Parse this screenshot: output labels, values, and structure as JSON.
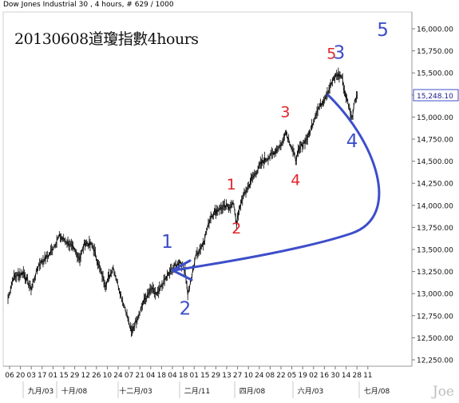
{
  "header": {
    "title": "Dow Jones Industrial 30 , 4 hours, # 629 / 1000"
  },
  "overlay_title": "20130608道瓊指數4hours",
  "watermark": "Joe",
  "colors": {
    "background": "#ffffff",
    "price_line": "#000000",
    "red_label": "#e0262b",
    "blue_label": "#3d4ec9",
    "arrow": "#3d4ec9",
    "last_price_box": "#3d4ec9"
  },
  "chart_data": {
    "type": "line",
    "title": "",
    "xlabel": "",
    "ylabel": "",
    "ylim": [
      12250,
      16000
    ],
    "y_ticks": [
      "12,250.00",
      "12,500.00",
      "12,750.00",
      "13,000.00",
      "13,250.00",
      "13,500.00",
      "13,750.00",
      "14,000.00",
      "14,250.00",
      "14,500.00",
      "14,750.00",
      "15,000.00",
      "15,250.00",
      "15,500.00",
      "15,750.00",
      "16,000.00"
    ],
    "x_ticks": [
      "06",
      "20",
      "03",
      "17",
      "01",
      "15",
      "29",
      "12",
      "26",
      "10",
      "24",
      "07",
      "21",
      "04",
      "18",
      "04",
      "18",
      "01",
      "15",
      "29",
      "13",
      "27",
      "10",
      "24",
      "08",
      "22",
      "05",
      "19",
      "02",
      "16",
      "30",
      "14",
      "28",
      "11"
    ],
    "x_months": [
      "九月/03",
      "十月/08",
      "十二月/03",
      "二月/11",
      "四月/08",
      "六月/03",
      "七月/08"
    ],
    "last_price": "15,248.10",
    "anchors": [
      {
        "t": 0,
        "v": 12940
      },
      {
        "t": 2,
        "v": 13180
      },
      {
        "t": 6,
        "v": 13240
      },
      {
        "t": 9,
        "v": 13050
      },
      {
        "t": 12,
        "v": 13330
      },
      {
        "t": 16,
        "v": 13440
      },
      {
        "t": 20,
        "v": 13650
      },
      {
        "t": 24,
        "v": 13560
      },
      {
        "t": 28,
        "v": 13400
      },
      {
        "t": 30,
        "v": 13580
      },
      {
        "t": 33,
        "v": 13540
      },
      {
        "t": 36,
        "v": 13260
      },
      {
        "t": 38,
        "v": 13100
      },
      {
        "t": 41,
        "v": 13300
      },
      {
        "t": 44,
        "v": 12980
      },
      {
        "t": 46,
        "v": 12800
      },
      {
        "t": 48,
        "v": 12560
      },
      {
        "t": 50,
        "v": 12700
      },
      {
        "t": 53,
        "v": 12920
      },
      {
        "t": 56,
        "v": 13050
      },
      {
        "t": 58,
        "v": 12980
      },
      {
        "t": 61,
        "v": 13150
      },
      {
        "t": 64,
        "v": 13280
      },
      {
        "t": 67,
        "v": 13360
      },
      {
        "t": 69,
        "v": 13270
      },
      {
        "t": 70,
        "v": 13000
      },
      {
        "t": 71,
        "v": 13100
      },
      {
        "t": 73,
        "v": 13420
      },
      {
        "t": 76,
        "v": 13570
      },
      {
        "t": 79,
        "v": 13880
      },
      {
        "t": 82,
        "v": 13960
      },
      {
        "t": 86,
        "v": 13990
      },
      {
        "t": 88,
        "v": 14010
      },
      {
        "t": 89,
        "v": 13790
      },
      {
        "t": 91,
        "v": 14060
      },
      {
        "t": 95,
        "v": 14300
      },
      {
        "t": 99,
        "v": 14490
      },
      {
        "t": 103,
        "v": 14580
      },
      {
        "t": 107,
        "v": 14710
      },
      {
        "t": 108,
        "v": 14850
      },
      {
        "t": 110,
        "v": 14700
      },
      {
        "t": 112,
        "v": 14520
      },
      {
        "t": 114,
        "v": 14660
      },
      {
        "t": 117,
        "v": 14780
      },
      {
        "t": 120,
        "v": 15050
      },
      {
        "t": 123,
        "v": 15200
      },
      {
        "t": 126,
        "v": 15380
      },
      {
        "t": 128,
        "v": 15480
      },
      {
        "t": 130,
        "v": 15460
      },
      {
        "t": 131,
        "v": 15300
      },
      {
        "t": 133,
        "v": 15100
      },
      {
        "t": 134,
        "v": 14980
      },
      {
        "t": 135,
        "v": 15200
      },
      {
        "t": 136,
        "v": 15248
      }
    ],
    "wave_labels": [
      {
        "text": "1",
        "t": 87,
        "v": 14180,
        "color": "red"
      },
      {
        "text": "2",
        "t": 89,
        "v": 13680,
        "color": "red"
      },
      {
        "text": "3",
        "t": 108,
        "v": 15000,
        "color": "red"
      },
      {
        "text": "4",
        "t": 112,
        "v": 14230,
        "color": "red"
      },
      {
        "text": "5",
        "t": 126,
        "v": 15660,
        "color": "red"
      },
      {
        "text": "3",
        "t": 129,
        "v": 15660,
        "color": "blue"
      },
      {
        "text": "4",
        "t": 134,
        "v": 14660,
        "color": "blue"
      },
      {
        "text": "5",
        "t": 146,
        "v": 15920,
        "color": "blue"
      },
      {
        "text": "1",
        "t": 62,
        "v": 13520,
        "color": "blue"
      },
      {
        "text": "2",
        "t": 69,
        "v": 12760,
        "color": "blue"
      }
    ]
  }
}
